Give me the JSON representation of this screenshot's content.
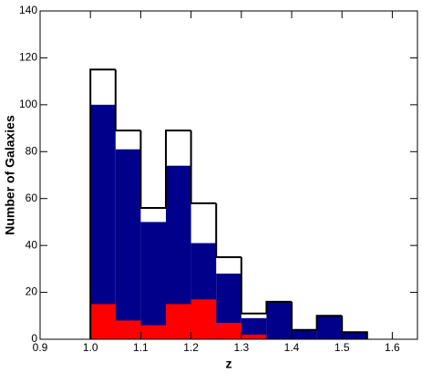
{
  "chart_data": {
    "type": "histogram",
    "xlabel": "z",
    "ylabel": "Number of Galaxies",
    "bins": [
      1.0,
      1.05,
      1.1,
      1.15,
      1.2,
      1.25,
      1.3,
      1.35,
      1.4,
      1.45,
      1.5,
      1.55
    ],
    "series": [
      {
        "color": "#000000",
        "histtype": "step",
        "values": [
          115,
          89,
          56,
          89,
          58,
          35,
          11,
          16,
          4,
          10,
          3
        ]
      },
      {
        "color": "#00008b",
        "histtype": "stepfilled",
        "values": [
          100,
          81,
          50,
          74,
          41,
          28,
          9,
          16,
          4,
          10,
          3
        ]
      },
      {
        "color": "#ff0000",
        "histtype": "stepfilled",
        "values": [
          15,
          8,
          6,
          15,
          17,
          7,
          2,
          0,
          0,
          0,
          0
        ]
      }
    ],
    "xlim": [
      0.9,
      1.65
    ],
    "xticks": [
      0.9,
      1.0,
      1.1,
      1.2,
      1.3,
      1.4,
      1.5,
      1.6
    ],
    "ylim": [
      0,
      140
    ],
    "yticks": [
      0,
      20,
      40,
      60,
      80,
      100,
      120,
      140
    ]
  }
}
